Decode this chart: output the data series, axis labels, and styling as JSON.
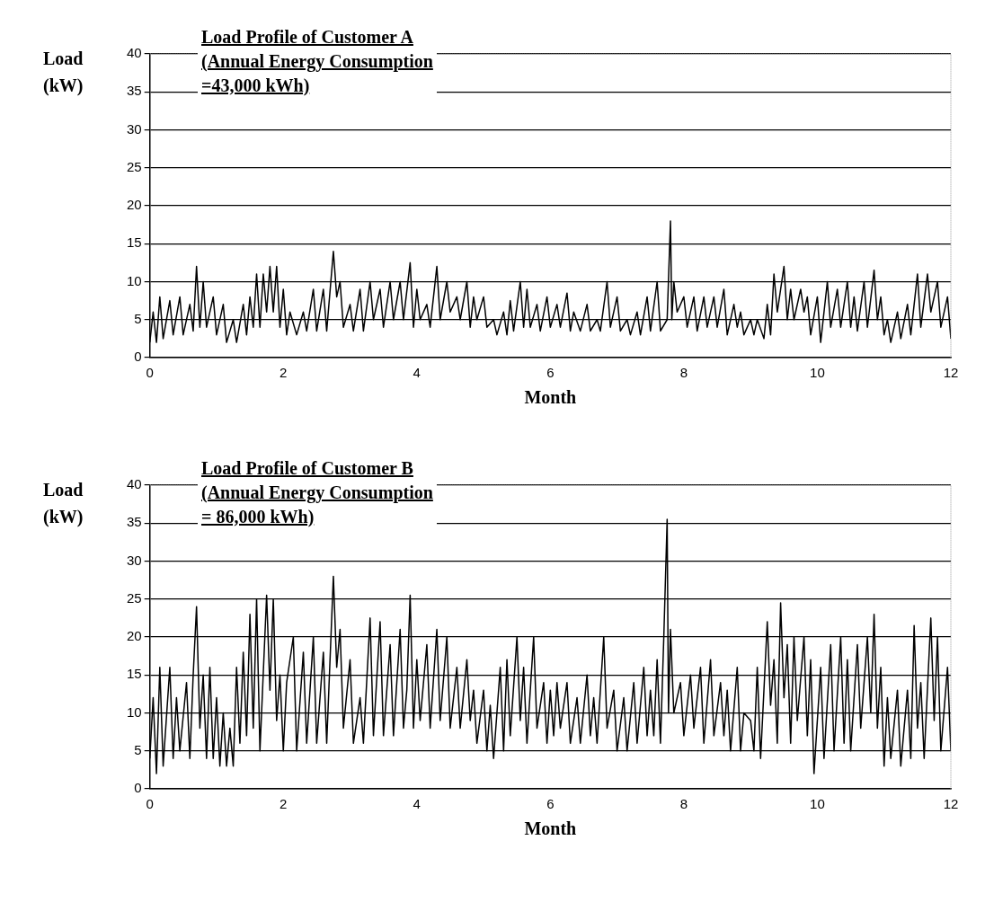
{
  "chart_data": [
    {
      "type": "line",
      "title": "Load Profile of Customer A\n(Annual Energy Consumption\n=43,000 kWh)",
      "xlabel": "Month",
      "ylabel": "Load\n(kW)",
      "xlim": [
        0,
        12
      ],
      "xticks": [
        0,
        2,
        4,
        6,
        8,
        10,
        12
      ],
      "ylim": [
        0,
        40
      ],
      "yticks": [
        0,
        5,
        10,
        15,
        20,
        25,
        30,
        35,
        40
      ],
      "grid": "y",
      "marker": "none",
      "legend": false,
      "series": [
        {
          "color": "#000000",
          "x": [
            0,
            0.05,
            0.1,
            0.15,
            0.2,
            0.3,
            0.35,
            0.45,
            0.5,
            0.6,
            0.65,
            0.7,
            0.75,
            0.8,
            0.85,
            0.95,
            1.0,
            1.1,
            1.15,
            1.25,
            1.3,
            1.4,
            1.45,
            1.5,
            1.55,
            1.6,
            1.65,
            1.7,
            1.75,
            1.8,
            1.85,
            1.9,
            1.95,
            2.0,
            2.05,
            2.1,
            2.2,
            2.3,
            2.35,
            2.45,
            2.5,
            2.6,
            2.65,
            2.75,
            2.8,
            2.85,
            2.9,
            3.0,
            3.05,
            3.15,
            3.2,
            3.3,
            3.35,
            3.45,
            3.5,
            3.6,
            3.65,
            3.75,
            3.8,
            3.9,
            3.95,
            4.0,
            4.05,
            4.15,
            4.2,
            4.3,
            4.35,
            4.45,
            4.5,
            4.6,
            4.65,
            4.75,
            4.8,
            4.85,
            4.9,
            5.0,
            5.05,
            5.15,
            5.2,
            5.3,
            5.35,
            5.4,
            5.45,
            5.55,
            5.6,
            5.65,
            5.7,
            5.8,
            5.85,
            5.95,
            6.0,
            6.1,
            6.15,
            6.25,
            6.3,
            6.35,
            6.45,
            6.55,
            6.6,
            6.7,
            6.75,
            6.85,
            6.9,
            7.0,
            7.05,
            7.15,
            7.2,
            7.3,
            7.35,
            7.45,
            7.5,
            7.6,
            7.65,
            7.75,
            7.8,
            7.82,
            7.85,
            7.9,
            8.0,
            8.05,
            8.15,
            8.2,
            8.3,
            8.35,
            8.45,
            8.5,
            8.6,
            8.65,
            8.75,
            8.8,
            8.85,
            8.9,
            9.0,
            9.05,
            9.1,
            9.2,
            9.25,
            9.3,
            9.35,
            9.4,
            9.5,
            9.55,
            9.6,
            9.65,
            9.75,
            9.8,
            9.85,
            9.9,
            10.0,
            10.05,
            10.15,
            10.2,
            10.3,
            10.35,
            10.45,
            10.5,
            10.55,
            10.6,
            10.7,
            10.75,
            10.85,
            10.9,
            10.95,
            11.0,
            11.05,
            11.1,
            11.2,
            11.25,
            11.35,
            11.4,
            11.5,
            11.55,
            11.65,
            11.7,
            11.8,
            11.85,
            11.95,
            12.0
          ],
          "values": [
            2,
            6,
            2,
            8,
            2.5,
            7.5,
            3,
            8,
            3,
            7,
            3.5,
            12,
            4,
            10,
            4,
            8,
            3,
            7,
            2,
            5,
            2,
            7,
            3,
            8,
            4,
            11,
            4,
            11,
            6,
            12,
            6,
            12,
            4,
            9,
            3,
            6,
            3,
            6,
            3.5,
            9,
            3.5,
            9,
            3.5,
            14,
            8,
            10,
            4,
            7,
            3.5,
            9,
            3.5,
            10,
            5,
            9,
            4,
            10,
            5,
            10,
            5,
            12.5,
            4,
            9,
            5,
            7,
            4,
            12,
            5,
            10,
            6,
            8,
            5,
            10,
            4,
            8,
            5,
            8,
            4,
            5,
            3,
            6,
            3,
            7.5,
            3.5,
            10,
            4,
            9,
            4,
            7,
            3.5,
            8,
            4,
            7,
            4,
            8.5,
            3.5,
            6,
            3.5,
            7,
            3.5,
            5,
            3.5,
            10,
            4,
            8,
            3.5,
            5,
            3,
            6,
            3,
            8,
            3.5,
            10,
            3.5,
            5,
            18,
            5,
            10,
            6,
            8,
            4,
            8,
            3.5,
            8,
            4,
            8,
            4,
            9,
            3,
            7,
            4,
            6,
            3,
            5,
            3,
            5,
            2.5,
            7,
            3,
            11,
            6,
            12,
            5,
            9,
            5,
            9,
            6,
            8,
            3,
            8,
            2,
            10,
            4,
            9,
            4,
            10,
            4,
            8,
            3.5,
            10,
            4,
            11.5,
            5,
            8,
            3,
            5,
            2,
            6,
            2.5,
            7,
            3,
            11,
            4,
            11,
            6,
            10,
            4,
            8,
            2.5
          ]
        }
      ]
    },
    {
      "type": "line",
      "title": "Load Profile of Customer B\n(Annual Energy Consumption\n= 86,000 kWh)",
      "xlabel": "Month",
      "ylabel": "Load\n(kW)",
      "xlim": [
        0,
        12
      ],
      "xticks": [
        0,
        2,
        4,
        6,
        8,
        10,
        12
      ],
      "ylim": [
        0,
        40
      ],
      "yticks": [
        0,
        5,
        10,
        15,
        20,
        25,
        30,
        35,
        40
      ],
      "grid": "y",
      "marker": "none",
      "legend": false,
      "series": [
        {
          "color": "#000000",
          "x": [
            0,
            0.05,
            0.1,
            0.15,
            0.2,
            0.3,
            0.35,
            0.4,
            0.45,
            0.55,
            0.6,
            0.65,
            0.7,
            0.75,
            0.8,
            0.85,
            0.9,
            0.95,
            1.0,
            1.05,
            1.1,
            1.15,
            1.2,
            1.25,
            1.3,
            1.35,
            1.4,
            1.45,
            1.5,
            1.55,
            1.6,
            1.65,
            1.75,
            1.8,
            1.85,
            1.9,
            1.95,
            2.0,
            2.05,
            2.15,
            2.2,
            2.3,
            2.35,
            2.45,
            2.5,
            2.6,
            2.65,
            2.75,
            2.8,
            2.85,
            2.9,
            3.0,
            3.05,
            3.15,
            3.2,
            3.3,
            3.35,
            3.45,
            3.5,
            3.6,
            3.65,
            3.75,
            3.8,
            3.85,
            3.9,
            3.95,
            4.0,
            4.05,
            4.15,
            4.2,
            4.3,
            4.35,
            4.45,
            4.5,
            4.6,
            4.65,
            4.75,
            4.8,
            4.85,
            4.9,
            5.0,
            5.05,
            5.1,
            5.15,
            5.25,
            5.3,
            5.35,
            5.4,
            5.5,
            5.55,
            5.6,
            5.65,
            5.75,
            5.8,
            5.9,
            5.95,
            6.0,
            6.05,
            6.1,
            6.15,
            6.25,
            6.3,
            6.4,
            6.45,
            6.55,
            6.6,
            6.65,
            6.7,
            6.8,
            6.85,
            6.95,
            7.0,
            7.1,
            7.15,
            7.25,
            7.3,
            7.4,
            7.45,
            7.5,
            7.55,
            7.6,
            7.65,
            7.7,
            7.75,
            7.77,
            7.8,
            7.85,
            7.95,
            8.0,
            8.1,
            8.15,
            8.25,
            8.3,
            8.4,
            8.45,
            8.55,
            8.6,
            8.65,
            8.7,
            8.8,
            8.85,
            8.9,
            9.0,
            9.05,
            9.1,
            9.15,
            9.25,
            9.3,
            9.35,
            9.4,
            9.45,
            9.5,
            9.55,
            9.6,
            9.65,
            9.7,
            9.8,
            9.85,
            9.9,
            9.95,
            10.05,
            10.1,
            10.2,
            10.25,
            10.35,
            10.4,
            10.45,
            10.5,
            10.6,
            10.65,
            10.75,
            10.8,
            10.85,
            10.9,
            10.95,
            11.0,
            11.05,
            11.1,
            11.2,
            11.25,
            11.35,
            11.4,
            11.45,
            11.5,
            11.55,
            11.6,
            11.7,
            11.75,
            11.8,
            11.85,
            11.95,
            12.0
          ],
          "values": [
            4,
            12,
            2,
            16,
            3,
            16,
            4,
            12,
            5,
            14,
            4,
            15,
            24,
            8,
            15,
            4,
            16,
            4,
            12,
            3,
            10,
            3,
            8,
            3,
            16,
            6,
            18,
            7,
            23,
            8,
            25,
            5,
            25.5,
            13,
            25,
            9,
            15,
            5,
            14,
            20,
            5,
            18,
            6,
            20,
            6,
            18,
            6,
            28,
            16,
            21,
            8,
            17,
            6,
            12,
            6,
            22.5,
            7,
            22,
            7,
            19,
            7,
            21,
            8,
            13,
            25.5,
            8,
            17,
            9,
            19,
            8,
            21,
            9,
            20,
            8,
            16,
            8,
            17,
            9,
            13,
            6,
            13,
            5,
            11,
            4,
            16,
            5,
            17,
            7,
            20,
            9,
            16,
            6,
            20,
            8,
            14,
            6,
            13,
            7,
            14,
            8,
            14,
            6,
            12,
            6,
            15,
            7,
            12,
            6,
            20,
            8,
            13,
            5,
            12,
            5,
            14,
            6,
            16,
            7,
            13,
            7,
            17,
            6,
            20,
            35.5,
            10,
            21,
            10,
            14,
            7,
            15,
            8,
            16,
            6,
            17,
            7,
            14,
            7,
            13,
            5,
            16,
            5,
            10,
            9,
            5,
            16,
            4,
            22,
            11,
            17,
            6,
            24.5,
            12,
            19,
            6,
            20,
            9,
            20,
            7,
            17,
            2,
            16,
            4,
            19,
            5,
            20,
            6,
            17,
            5,
            19,
            8,
            20,
            10,
            23,
            8,
            16,
            3,
            12,
            4,
            13,
            3,
            13,
            4,
            21.5,
            8,
            14,
            4,
            22.5,
            9,
            20,
            5,
            16,
            5
          ]
        }
      ]
    }
  ]
}
